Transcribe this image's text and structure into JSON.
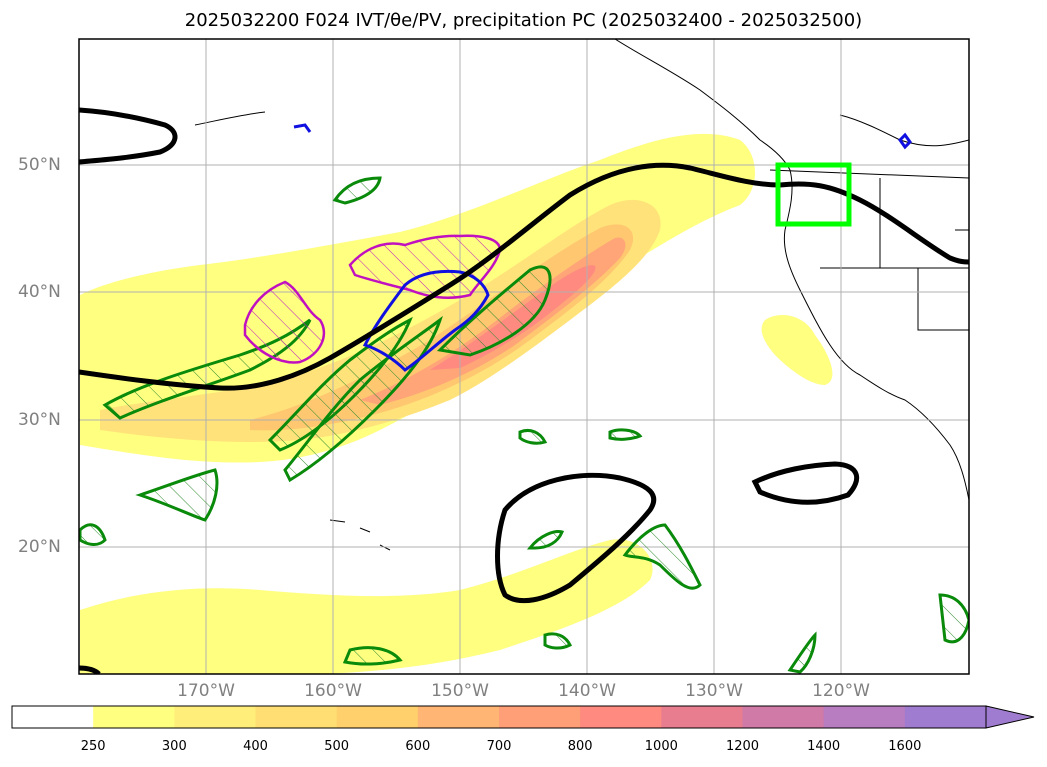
{
  "title": "2025032200 F024 IVT/θe/PV, precipitation PC (2025032400 - 2025032500)",
  "map": {
    "lon_range": [
      -180,
      -110
    ],
    "lat_range": [
      10,
      60
    ],
    "lon_labels": [
      "170°W",
      "160°W",
      "150°W",
      "140°W",
      "130°W",
      "120°W"
    ],
    "lat_labels": [
      "50°N",
      "40°N",
      "30°N",
      "20°N"
    ],
    "highlight_box_color": "#00ff00"
  },
  "colorbar": {
    "levels": [
      "250",
      "300",
      "400",
      "500",
      "600",
      "700",
      "800",
      "1000",
      "1200",
      "1400",
      "1600"
    ],
    "colors": [
      "#ffffff",
      "#ffff80",
      "#ffef7a",
      "#ffdf73",
      "#ffd06c",
      "#ffb573",
      "#ff9f78",
      "#ff8a80",
      "#e87d90",
      "#d07aa8",
      "#b87cc0",
      "#a07cd0"
    ]
  }
}
